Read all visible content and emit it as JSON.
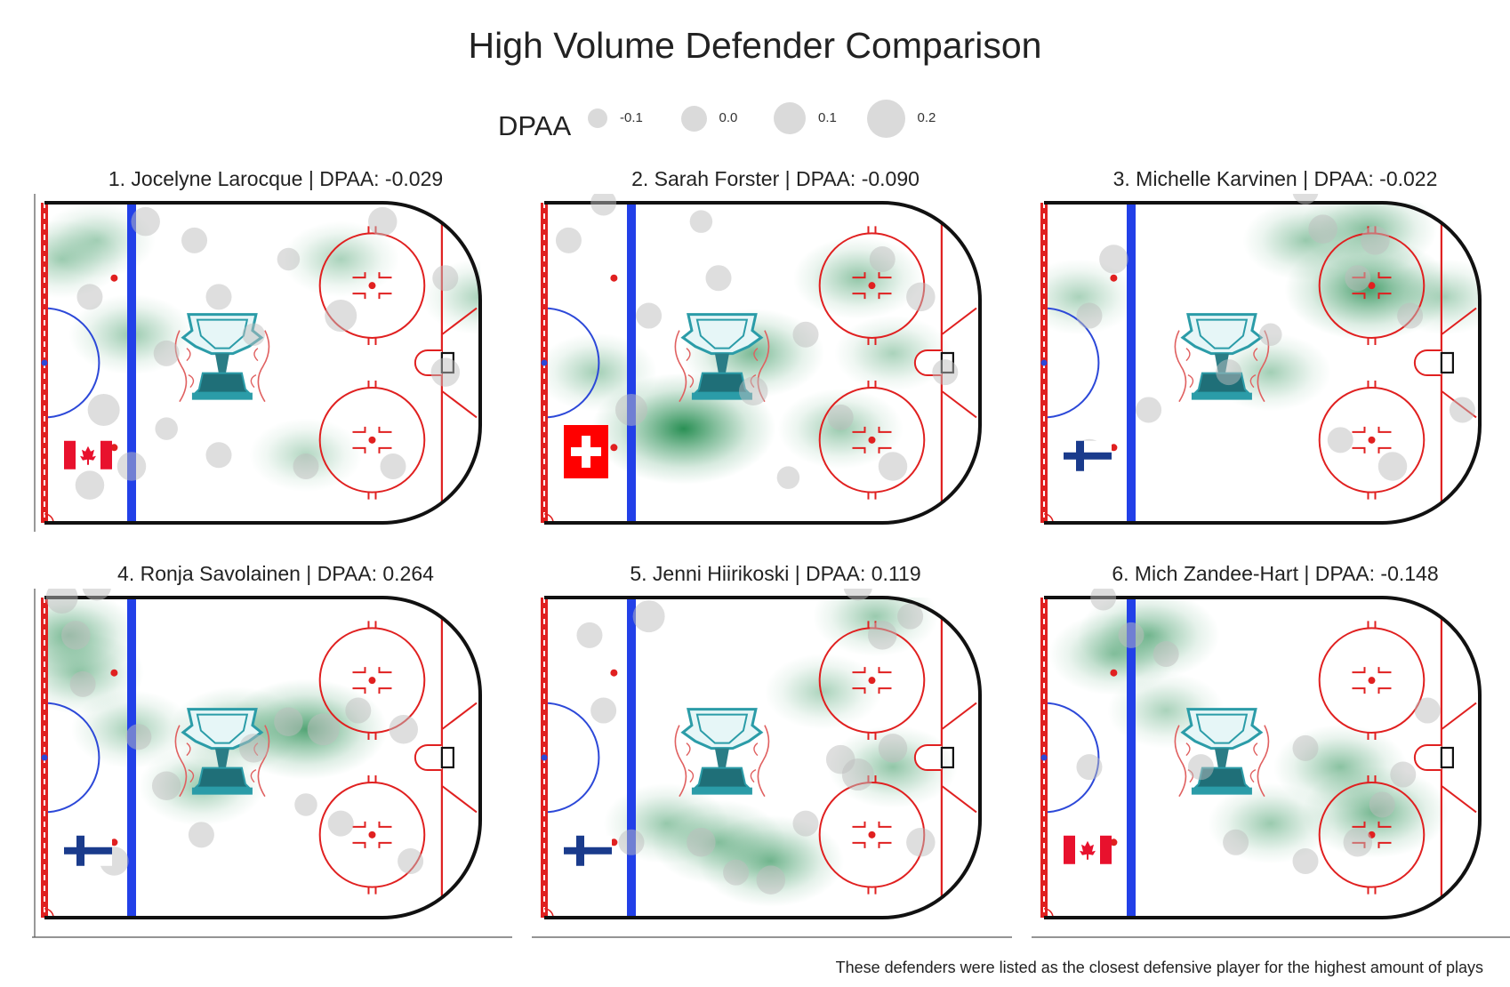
{
  "title": "High Volume Defender Comparison",
  "legend": {
    "label": "DPAA",
    "items": [
      {
        "label": "-0.1",
        "value": -0.1
      },
      {
        "label": "0.0",
        "value": 0.0
      },
      {
        "label": "0.1",
        "value": 0.1
      },
      {
        "label": "0.2",
        "value": 0.2
      }
    ]
  },
  "caption": "These defenders were listed as the closest defensive player for the highest amount of plays",
  "colors": {
    "heat": "#1f8a4c",
    "rink_red": "#e02020",
    "blue_line": "#2240e8",
    "crease_blue": "#2c48d8",
    "boards": "#111111",
    "point_gray": "#bdbdbd"
  },
  "chart_data": {
    "type": "heatmap",
    "panel_titles": [
      "1. Jocelyne Larocque | DPAA: -0.029",
      "2. Sarah Forster | DPAA: -0.090",
      "3. Michelle Karvinen | DPAA: -0.022",
      "4. Ronja Savolainen | DPAA: 0.264",
      "5. Jenni Hiirikoski | DPAA: 0.119",
      "6. Mich Zandee-Hart | DPAA: -0.148"
    ],
    "panels": [
      {
        "rank": 1,
        "player": "Jocelyne Larocque",
        "dpaa": -0.029,
        "flag": "canada-flag-icon",
        "density": [
          [
            100,
            50,
            0.3
          ],
          [
            80,
            70,
            0.25
          ],
          [
            200,
            60,
            0.2
          ],
          [
            90,
            75,
            0.2
          ],
          [
            160,
            70,
            0.2
          ],
          [
            150,
            18,
            0.15
          ]
        ],
        "points": [
          {
            "x": 104,
            "y": 80,
            "v": 0.05
          },
          {
            "x": 118,
            "y": 75,
            "v": 0.0
          },
          {
            "x": 145,
            "y": 70,
            "v": -0.05
          },
          {
            "x": 172,
            "y": 80,
            "v": 0.05
          },
          {
            "x": 190,
            "y": 65,
            "v": 0.0
          },
          {
            "x": 125,
            "y": 60,
            "v": 0.0
          },
          {
            "x": 135,
            "y": 50,
            "v": -0.05
          },
          {
            "x": 160,
            "y": 55,
            "v": 0.1
          },
          {
            "x": 110,
            "y": 45,
            "v": 0.0
          },
          {
            "x": 190,
            "y": 40,
            "v": 0.05
          },
          {
            "x": 175,
            "y": 15,
            "v": 0.0
          },
          {
            "x": 150,
            "y": 15,
            "v": 0.0
          },
          {
            "x": 100,
            "y": 15,
            "v": 0.05
          },
          {
            "x": 88,
            "y": 60,
            "v": 0.0
          },
          {
            "x": 92,
            "y": 30,
            "v": 0.1
          },
          {
            "x": 110,
            "y": 25,
            "v": -0.05
          },
          {
            "x": 125,
            "y": 18,
            "v": 0.0
          },
          {
            "x": 88,
            "y": 10,
            "v": 0.05
          }
        ]
      },
      {
        "rank": 2,
        "player": "Sarah Forster",
        "dpaa": -0.09,
        "flag": "switzerland-flag-icon",
        "density": [
          [
            115,
            25,
            1.0
          ],
          [
            135,
            45,
            0.5
          ],
          [
            165,
            65,
            0.35
          ],
          [
            160,
            25,
            0.3
          ],
          [
            90,
            40,
            0.25
          ],
          [
            175,
            45,
            0.2
          ]
        ],
        "points": [
          {
            "x": 85,
            "y": 20,
            "v": 0.05
          },
          {
            "x": 100,
            "y": 30,
            "v": 0.1
          },
          {
            "x": 105,
            "y": 55,
            "v": 0.0
          },
          {
            "x": 82,
            "y": 75,
            "v": 0.0
          },
          {
            "x": 120,
            "y": 80,
            "v": -0.05
          },
          {
            "x": 175,
            "y": 15,
            "v": 0.05
          },
          {
            "x": 160,
            "y": 28,
            "v": 0.0
          },
          {
            "x": 172,
            "y": 70,
            "v": 0.0
          },
          {
            "x": 150,
            "y": 50,
            "v": 0.0
          },
          {
            "x": 135,
            "y": 35,
            "v": 0.05
          },
          {
            "x": 190,
            "y": 40,
            "v": 0.0
          },
          {
            "x": 145,
            "y": 12,
            "v": -0.05
          },
          {
            "x": 92,
            "y": 85,
            "v": 0.0
          },
          {
            "x": 125,
            "y": 65,
            "v": 0.0
          },
          {
            "x": 183,
            "y": 60,
            "v": 0.05
          }
        ]
      },
      {
        "rank": 3,
        "player": "Michelle Karvinen",
        "dpaa": -0.022,
        "flag": "finland-flag-icon",
        "density": [
          [
            168,
            62,
            0.8
          ],
          [
            168,
            78,
            0.45
          ],
          [
            150,
            75,
            0.3
          ],
          [
            140,
            40,
            0.25
          ],
          [
            85,
            60,
            0.2
          ],
          [
            190,
            60,
            0.2
          ]
        ],
        "points": [
          {
            "x": 165,
            "y": 65,
            "v": 0.0
          },
          {
            "x": 170,
            "y": 75,
            "v": 0.05
          },
          {
            "x": 180,
            "y": 55,
            "v": 0.0
          },
          {
            "x": 155,
            "y": 78,
            "v": 0.05
          },
          {
            "x": 140,
            "y": 50,
            "v": -0.05
          },
          {
            "x": 128,
            "y": 40,
            "v": 0.0
          },
          {
            "x": 95,
            "y": 70,
            "v": 0.05
          },
          {
            "x": 88,
            "y": 55,
            "v": 0.0
          },
          {
            "x": 105,
            "y": 30,
            "v": 0.0
          },
          {
            "x": 175,
            "y": 15,
            "v": 0.05
          },
          {
            "x": 195,
            "y": 30,
            "v": 0.0
          },
          {
            "x": 160,
            "y": 22,
            "v": 0.0
          },
          {
            "x": 88,
            "y": 18,
            "v": 0.1
          },
          {
            "x": 150,
            "y": 88,
            "v": 0.0
          }
        ]
      },
      {
        "rank": 4,
        "player": "Ronja Savolainen",
        "dpaa": 0.264,
        "flag": "finland-flag-icon",
        "density": [
          [
            150,
            50,
            0.75
          ],
          [
            130,
            50,
            0.4
          ],
          [
            82,
            75,
            0.5
          ],
          [
            85,
            65,
            0.35
          ],
          [
            120,
            35,
            0.3
          ],
          [
            100,
            50,
            0.25
          ]
        ],
        "points": [
          {
            "x": 80,
            "y": 85,
            "v": 0.1
          },
          {
            "x": 84,
            "y": 75,
            "v": 0.05
          },
          {
            "x": 90,
            "y": 88,
            "v": 0.05
          },
          {
            "x": 86,
            "y": 62,
            "v": 0.0
          },
          {
            "x": 145,
            "y": 52,
            "v": 0.05
          },
          {
            "x": 155,
            "y": 50,
            "v": 0.1
          },
          {
            "x": 135,
            "y": 45,
            "v": 0.05
          },
          {
            "x": 165,
            "y": 55,
            "v": 0.0
          },
          {
            "x": 178,
            "y": 50,
            "v": 0.05
          },
          {
            "x": 110,
            "y": 35,
            "v": 0.05
          },
          {
            "x": 120,
            "y": 22,
            "v": 0.0
          },
          {
            "x": 180,
            "y": 15,
            "v": 0.0
          },
          {
            "x": 160,
            "y": 25,
            "v": 0.0
          },
          {
            "x": 95,
            "y": 15,
            "v": 0.05
          },
          {
            "x": 102,
            "y": 48,
            "v": 0.0
          },
          {
            "x": 150,
            "y": 30,
            "v": -0.05
          }
        ]
      },
      {
        "rank": 5,
        "player": "Jenni Hiirikoski",
        "dpaa": 0.119,
        "flag": "finland-flag-icon",
        "density": [
          [
            140,
            15,
            0.55
          ],
          [
            125,
            20,
            0.4
          ],
          [
            175,
            40,
            0.35
          ],
          [
            170,
            80,
            0.3
          ],
          [
            110,
            25,
            0.3
          ],
          [
            155,
            60,
            0.2
          ]
        ],
        "points": [
          {
            "x": 160,
            "y": 42,
            "v": 0.05
          },
          {
            "x": 165,
            "y": 38,
            "v": 0.1
          },
          {
            "x": 175,
            "y": 45,
            "v": 0.05
          },
          {
            "x": 172,
            "y": 75,
            "v": 0.05
          },
          {
            "x": 180,
            "y": 80,
            "v": 0.0
          },
          {
            "x": 165,
            "y": 88,
            "v": 0.05
          },
          {
            "x": 140,
            "y": 10,
            "v": 0.05
          },
          {
            "x": 130,
            "y": 12,
            "v": 0.0
          },
          {
            "x": 120,
            "y": 20,
            "v": 0.05
          },
          {
            "x": 105,
            "y": 80,
            "v": 0.1
          },
          {
            "x": 88,
            "y": 75,
            "v": 0.0
          },
          {
            "x": 92,
            "y": 55,
            "v": 0.0
          },
          {
            "x": 150,
            "y": 25,
            "v": 0.0
          },
          {
            "x": 100,
            "y": 20,
            "v": 0.0
          },
          {
            "x": 183,
            "y": 20,
            "v": 0.05
          }
        ]
      },
      {
        "rank": 6,
        "player": "Mich Zandee-Hart",
        "dpaa": -0.148,
        "flag": "canada-flag-icon",
        "density": [
          [
            170,
            28,
            0.55
          ],
          [
            160,
            40,
            0.4
          ],
          [
            105,
            75,
            0.5
          ],
          [
            95,
            70,
            0.35
          ],
          [
            140,
            25,
            0.3
          ],
          [
            110,
            55,
            0.2
          ]
        ],
        "points": [
          {
            "x": 100,
            "y": 75,
            "v": 0.0
          },
          {
            "x": 110,
            "y": 70,
            "v": 0.0
          },
          {
            "x": 92,
            "y": 85,
            "v": 0.0
          },
          {
            "x": 172,
            "y": 30,
            "v": 0.0
          },
          {
            "x": 165,
            "y": 20,
            "v": 0.05
          },
          {
            "x": 178,
            "y": 38,
            "v": 0.0
          },
          {
            "x": 150,
            "y": 15,
            "v": 0.0
          },
          {
            "x": 130,
            "y": 20,
            "v": 0.0
          },
          {
            "x": 185,
            "y": 55,
            "v": 0.0
          },
          {
            "x": 120,
            "y": 40,
            "v": 0.0
          },
          {
            "x": 88,
            "y": 40,
            "v": 0.0
          },
          {
            "x": 150,
            "y": 45,
            "v": 0.0
          }
        ]
      }
    ],
    "x_range": [
      75,
      200
    ],
    "y_range": [
      0,
      85
    ],
    "x_axis": "rink x position (feet)",
    "y_axis": "rink y position (feet)",
    "grid": false,
    "legend_position": "top"
  }
}
